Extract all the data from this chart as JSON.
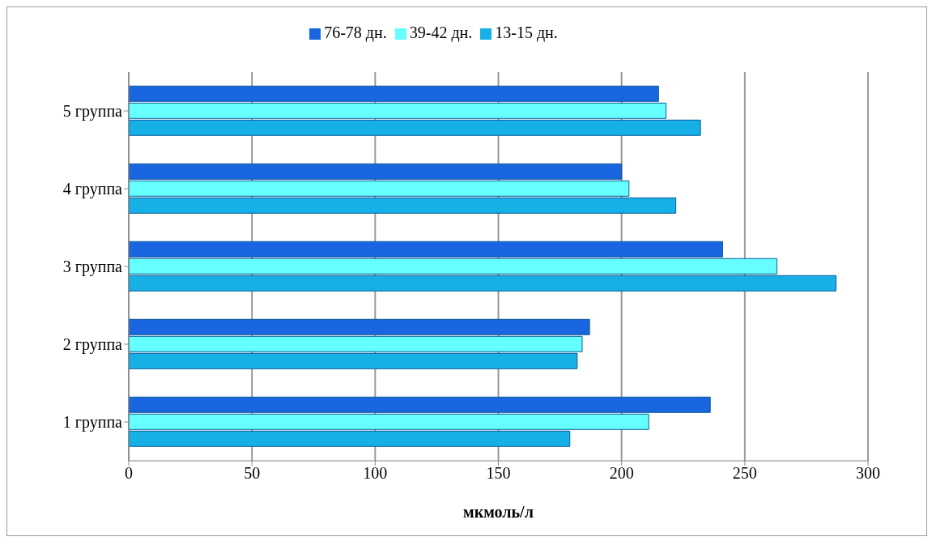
{
  "chart_data": {
    "type": "bar",
    "orientation": "horizontal",
    "xlabel": "мкмоль/л",
    "categories": [
      "5 группа",
      "4 группа",
      "3 группа",
      "2 группа",
      "1 группа"
    ],
    "series": [
      {
        "name": "76-78 дн.",
        "color": "#1a66e0",
        "values": [
          215,
          200,
          241,
          187,
          236
        ]
      },
      {
        "name": "39-42 дн.",
        "color": "#66ffff",
        "values": [
          218,
          203,
          263,
          184,
          211
        ]
      },
      {
        "name": "13-15 дн.",
        "color": "#16b0e6",
        "values": [
          232,
          222,
          287,
          182,
          179
        ]
      }
    ],
    "xlim": [
      0,
      300
    ],
    "xticks": [
      0,
      50,
      100,
      150,
      200,
      250,
      300
    ],
    "grid": "x",
    "legend": "top"
  }
}
